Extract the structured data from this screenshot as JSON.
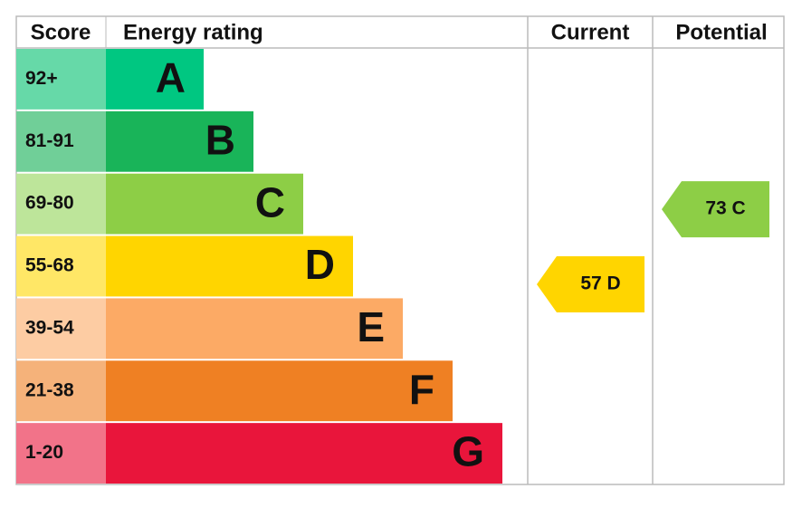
{
  "chart_data": {
    "type": "epc",
    "headers": {
      "score": "Score",
      "rating": "Energy rating",
      "current": "Current",
      "potential": "Potential"
    },
    "bands": [
      {
        "score": "92+",
        "letter": "A",
        "color": "#00c781",
        "light_color": "#66d9a8"
      },
      {
        "score": "81-91",
        "letter": "B",
        "color": "#19b459",
        "light_color": "#70cf98"
      },
      {
        "score": "69-80",
        "letter": "C",
        "color": "#8dce46",
        "light_color": "#bde59a"
      },
      {
        "score": "55-68",
        "letter": "D",
        "color": "#ffd500",
        "light_color": "#ffe766"
      },
      {
        "score": "39-54",
        "letter": "E",
        "color": "#fcaa65",
        "light_color": "#fdcca3"
      },
      {
        "score": "21-38",
        "letter": "F",
        "color": "#ef8023",
        "light_color": "#f5b27a"
      },
      {
        "score": "1-20",
        "letter": "G",
        "color": "#e9153b",
        "light_color": "#f27389"
      }
    ],
    "current": {
      "value": 57,
      "band": "D",
      "label": "57 D",
      "color": "#ffd500"
    },
    "potential": {
      "value": 73,
      "band": "C",
      "label": "73 C",
      "color": "#8dce46"
    }
  }
}
